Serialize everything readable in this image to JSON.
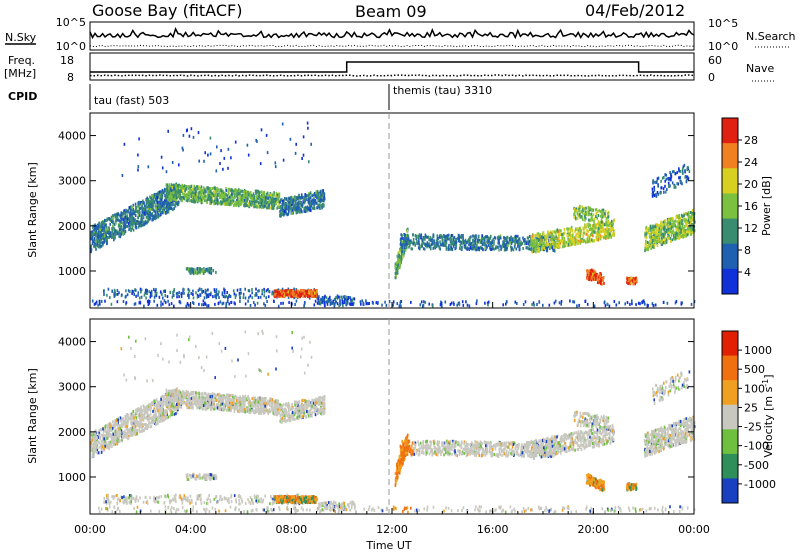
{
  "header": {
    "station": "Goose Bay (fitACF)",
    "beam": "Beam 09",
    "date": "04/Feb/2012"
  },
  "strip_labels": {
    "nsky": "N.Sky",
    "nsearch": "N.Search",
    "freq_top": "Freq.",
    "freq_unit": "[MHz]",
    "nave": "Nave",
    "cpid": "CPID",
    "nsky_ticks": [
      "10^5",
      "10^0"
    ],
    "freq_ticks": [
      "18",
      "8"
    ],
    "nave_ticks": [
      "60",
      "0"
    ]
  },
  "cpid_segments": [
    {
      "label": "tau (fast) 503",
      "start_h": 0
    },
    {
      "label": "themis (tau) 3310",
      "start_h": 12
    }
  ],
  "chart_data": [
    {
      "type": "heatmap",
      "name": "power-panel",
      "ylabel": "Slant Range [km]",
      "ylim": [
        180,
        4500
      ],
      "yticks": [
        1000,
        2000,
        3000,
        4000
      ],
      "xlim": [
        0,
        24
      ],
      "colorbar": {
        "label": "Power [dB]",
        "ticks": [
          "4",
          "8",
          "12",
          "16",
          "20",
          "24",
          "28"
        ],
        "colors": [
          "#1030d8",
          "#2060b0",
          "#3a8c70",
          "#7cc040",
          "#d8d020",
          "#f08020",
          "#e02010"
        ]
      }
    },
    {
      "type": "heatmap",
      "name": "velocity-panel",
      "ylabel": "Slant Range [km]",
      "ylim": [
        180,
        4500
      ],
      "yticks": [
        1000,
        2000,
        3000,
        4000
      ],
      "xlim": [
        0,
        24
      ],
      "colorbar": {
        "label": "Velocity [m s",
        "label_sup": "-1",
        "label_end": "]",
        "ticks": [
          "1000",
          "500",
          "100",
          "25",
          "-25",
          "-100",
          "-500",
          "-1000"
        ],
        "colors": [
          "#1840c0",
          "#2f8f5a",
          "#70c040",
          "#c8c8c0",
          "#f0a020",
          "#f07010",
          "#e02000"
        ]
      }
    }
  ],
  "xaxis": {
    "ticks": [
      "00:00",
      "04:00",
      "08:00",
      "12:00",
      "16:00",
      "20:00",
      "00:00"
    ],
    "label": "Time UT"
  }
}
